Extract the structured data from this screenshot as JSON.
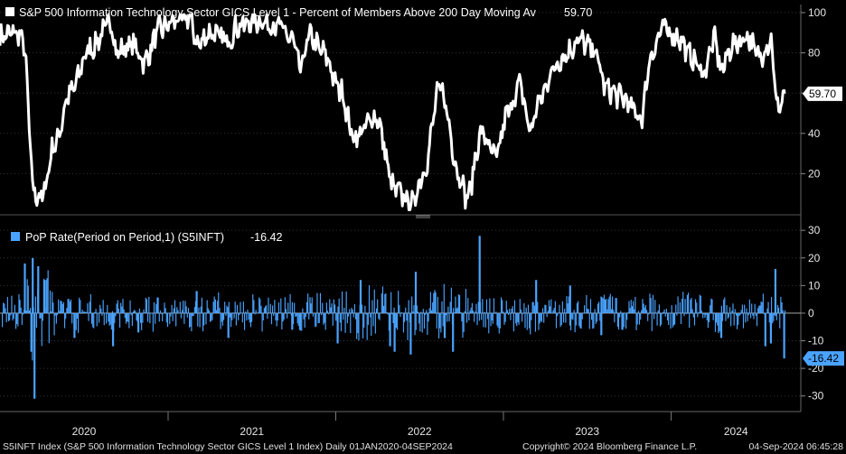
{
  "chart_data": [
    {
      "type": "line",
      "title": "S&P 500 Information Technology Sector GICS Level 1 - Percent of Members Above 200 Day Moving Av",
      "last_value_label": "59.70",
      "last_value": 59.7,
      "ylim": [
        0,
        104
      ],
      "yticks": [
        20,
        40,
        60,
        80,
        100
      ],
      "series_color": "#ffffff",
      "x": [
        "2020-01-01",
        "2020-02-05",
        "2020-02-20",
        "2020-03-16",
        "2020-03-31",
        "2020-04-30",
        "2020-06-01",
        "2020-07-15",
        "2020-08-31",
        "2020-09-10",
        "2020-10-15",
        "2020-11-10",
        "2020-12-15",
        "2021-01-20",
        "2021-02-15",
        "2021-03-08",
        "2021-04-01",
        "2021-05-12",
        "2021-06-01",
        "2021-07-15",
        "2021-08-31",
        "2021-09-30",
        "2021-10-15",
        "2021-11-05",
        "2021-12-05",
        "2022-01-10",
        "2022-02-10",
        "2022-03-29",
        "2022-05-10",
        "2022-06-16",
        "2022-07-10",
        "2022-08-16",
        "2022-09-30",
        "2022-10-13",
        "2022-11-15",
        "2022-12-15",
        "2023-01-10",
        "2023-02-05",
        "2023-03-01",
        "2023-03-20",
        "2023-04-20",
        "2023-05-10",
        "2023-06-15",
        "2023-07-15",
        "2023-08-15",
        "2023-09-15",
        "2023-10-27",
        "2023-11-20",
        "2023-12-15",
        "2024-01-15",
        "2024-02-15",
        "2024-03-10",
        "2024-04-05",
        "2024-04-19",
        "2024-05-15",
        "2024-06-15",
        "2024-07-10",
        "2024-08-05",
        "2024-08-20",
        "2024-09-04"
      ],
      "values": [
        88,
        90,
        86,
        10,
        8,
        35,
        60,
        82,
        95,
        80,
        84,
        76,
        92,
        96,
        98,
        84,
        90,
        86,
        93,
        96,
        93,
        86,
        72,
        88,
        80,
        62,
        38,
        48,
        12,
        5,
        20,
        62,
        18,
        8,
        40,
        28,
        50,
        64,
        42,
        56,
        72,
        78,
        86,
        82,
        62,
        58,
        48,
        80,
        92,
        88,
        78,
        70,
        86,
        72,
        84,
        88,
        78,
        86,
        52,
        59.7
      ]
    },
    {
      "type": "bar",
      "legend": "PoP Rate(Period on Period,1) (S5INFT)",
      "last_value_label": "-16.42",
      "last_value": -16.42,
      "ylim": [
        -35,
        33
      ],
      "yticks": [
        -30,
        -20,
        -10,
        0,
        10,
        20,
        30
      ],
      "series_color": "#4aa3ff",
      "x": [
        "2020-02-24",
        "2020-03-09",
        "2020-03-12",
        "2020-03-16",
        "2020-03-24",
        "2020-04-06",
        "2020-06-11",
        "2020-09-03",
        "2020-10-28",
        "2021-03-04",
        "2021-05-12",
        "2021-09-28",
        "2022-01-05",
        "2022-02-24",
        "2022-04-29",
        "2022-05-09",
        "2022-06-13",
        "2022-06-24",
        "2022-08-26",
        "2022-09-13",
        "2022-11-10",
        "2023-03-13",
        "2023-05-26",
        "2023-08-02",
        "2024-04-19",
        "2024-07-24",
        "2024-08-05",
        "2024-08-15",
        "2024-09-03"
      ],
      "values": [
        18,
        -14,
        20,
        -31,
        17,
        12,
        -9,
        -12,
        -7,
        8,
        -9,
        -6,
        -11,
        12,
        -12,
        -14,
        -15,
        15,
        -9,
        -14,
        28,
        12,
        10,
        -8,
        -9,
        -12,
        -11,
        16,
        -16.42
      ],
      "baseline_noise_band": [
        -5,
        5
      ]
    }
  ],
  "x_axis": {
    "tick_labels": [
      "2020",
      "2021",
      "2022",
      "2023",
      "2024"
    ]
  },
  "footer": {
    "left": "S5INFT Index (S&P 500 Information Technology Sector GICS Level 1 Index)  Daily 01JAN2020-04SEP2024",
    "center": "Copyright© 2024 Bloomberg Finance L.P.",
    "right": "04-Sep-2024 06:45:28"
  },
  "colors": {
    "background": "#000000",
    "grid": "#333333",
    "line": "#ffffff",
    "bar": "#4aa3ff",
    "tag_top": "#ffffff",
    "tag_bottom": "#4aa3ff"
  }
}
